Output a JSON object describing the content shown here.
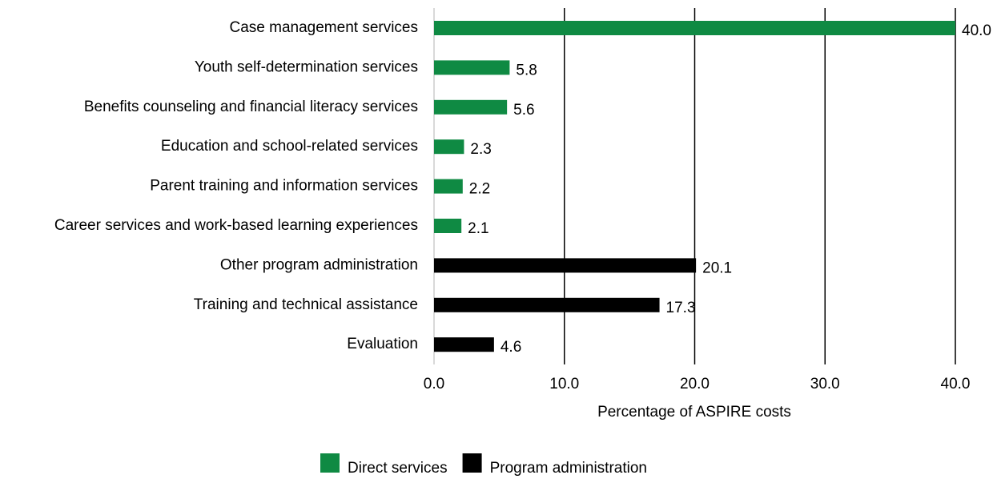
{
  "chart_data": {
    "type": "bar",
    "orientation": "horizontal",
    "x_label": "Percentage of ASPIRE costs",
    "categories": [
      "Case management services",
      "Youth self-determination services",
      "Benefits counseling and financial literacy services",
      "Education and school-related services",
      "Parent training and information services",
      "Career services and work-based learning experiences",
      "Other program administration",
      "Training and technical assistance",
      "Evaluation"
    ],
    "series": [
      {
        "name": "Direct services",
        "color": "#0f8a43",
        "values": [
          40,
          5.8,
          5.6,
          2.3,
          2.2,
          2.1,
          null,
          null,
          null
        ],
        "value_labels": [
          "40.0",
          "5.8",
          "5.6",
          "2.3",
          "2.2",
          "2.1",
          null,
          null,
          null
        ]
      },
      {
        "name": "Program administration",
        "color": "#000000",
        "values": [
          null,
          null,
          null,
          null,
          null,
          null,
          20.1,
          17.3,
          4.6
        ],
        "value_labels": [
          null,
          null,
          null,
          null,
          null,
          null,
          "20.1",
          "17.3",
          "4.6"
        ]
      }
    ],
    "xlim": [
      0,
      40
    ],
    "xticks": [
      {
        "value": 0,
        "label": "0.0"
      },
      {
        "value": 10,
        "label": "10.0"
      },
      {
        "value": 20,
        "label": "20.0"
      },
      {
        "value": 30,
        "label": "30.0"
      },
      {
        "value": 40,
        "label": "40.0"
      }
    ],
    "grid": true,
    "legend": "bottom"
  }
}
